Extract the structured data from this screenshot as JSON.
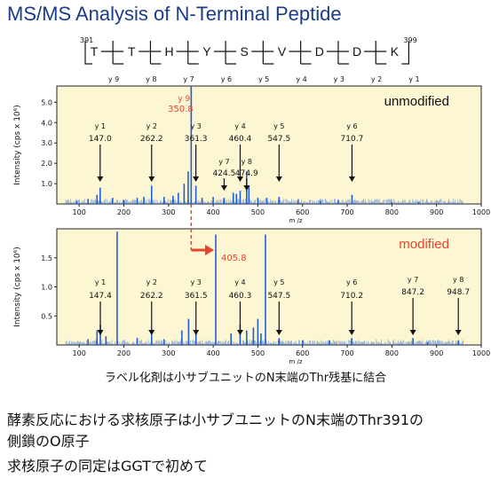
{
  "title": "MS/MS Analysis of N-Terminal Peptide",
  "peptide": {
    "residues": [
      "T",
      "T",
      "H",
      "Y",
      "S",
      "V",
      "D",
      "D",
      "K"
    ],
    "start_num": "391",
    "end_num": "399",
    "y_labels": [
      "y 9",
      "y 8",
      "y 7",
      "y 6",
      "y 5",
      "y 4",
      "y 3",
      "y 2",
      "y 1"
    ]
  },
  "caption": "ラベル化剤は小サブユニットのN末端のThr残基に結合",
  "notes": [
    "酵素反応における求核原子は小サブユニットのN末端のThr391の",
    "側鎖のO原子",
    "求核原子の同定はGGTで初めて"
  ],
  "chart_data": [
    {
      "type": "bar",
      "panel_label": "unmodified",
      "xlabel": "m /z",
      "ylabel": "Intensity (cps x 10⁶)",
      "xlim": [
        50,
        1000
      ],
      "ylim": [
        0,
        5.8
      ],
      "xticks": [
        100,
        200,
        300,
        400,
        500,
        600,
        700,
        800,
        900,
        1000
      ],
      "yticks": [
        1.0,
        2.0,
        3.0,
        4.0,
        5.0
      ],
      "peaks": [
        {
          "mz": 95,
          "i": 0.15
        },
        {
          "mz": 120,
          "i": 0.25
        },
        {
          "mz": 140,
          "i": 0.45
        },
        {
          "mz": 147.0,
          "i": 0.8
        },
        {
          "mz": 175,
          "i": 0.3
        },
        {
          "mz": 200,
          "i": 0.2
        },
        {
          "mz": 230,
          "i": 0.3
        },
        {
          "mz": 245,
          "i": 0.35
        },
        {
          "mz": 262.2,
          "i": 0.9
        },
        {
          "mz": 290,
          "i": 0.35
        },
        {
          "mz": 310,
          "i": 0.4
        },
        {
          "mz": 322,
          "i": 0.55
        },
        {
          "mz": 335,
          "i": 1.0
        },
        {
          "mz": 344,
          "i": 1.6
        },
        {
          "mz": 350.8,
          "i": 5.9
        },
        {
          "mz": 361.3,
          "i": 0.9
        },
        {
          "mz": 375,
          "i": 0.3
        },
        {
          "mz": 400,
          "i": 0.35
        },
        {
          "mz": 424.5,
          "i": 0.3
        },
        {
          "mz": 445,
          "i": 0.55
        },
        {
          "mz": 452,
          "i": 0.5
        },
        {
          "mz": 460.4,
          "i": 0.65
        },
        {
          "mz": 474.9,
          "i": 1.6
        },
        {
          "mz": 480,
          "i": 0.9
        },
        {
          "mz": 500,
          "i": 0.3
        },
        {
          "mz": 520,
          "i": 0.3
        },
        {
          "mz": 547.5,
          "i": 0.35
        },
        {
          "mz": 590,
          "i": 0.2
        },
        {
          "mz": 640,
          "i": 0.15
        },
        {
          "mz": 680,
          "i": 0.2
        },
        {
          "mz": 710.7,
          "i": 0.45
        },
        {
          "mz": 800,
          "i": 0.1
        },
        {
          "mz": 860,
          "i": 0.1
        }
      ],
      "annotations": [
        {
          "ion": "y 1",
          "mz": 147.0,
          "mz_label": "147.0",
          "arrow": true
        },
        {
          "ion": "y 2",
          "mz": 262.2,
          "mz_label": "262.2",
          "arrow": true
        },
        {
          "ion": "y 3",
          "mz": 361.3,
          "mz_label": "361.3",
          "arrow": true
        },
        {
          "ion": "y 7",
          "mz": 424.5,
          "mz_label": "424.5",
          "arrow": true
        },
        {
          "ion": "y 4",
          "mz": 460.4,
          "mz_label": "460.4",
          "arrow": true
        },
        {
          "ion": "y 8",
          "mz": 474.9,
          "mz_label": "474.9",
          "arrow": true
        },
        {
          "ion": "y 5",
          "mz": 547.5,
          "mz_label": "547.5",
          "arrow": true
        },
        {
          "ion": "y 6",
          "mz": 710.7,
          "mz_label": "710.7",
          "arrow": true
        },
        {
          "ion": "y 9",
          "mz": 350.8,
          "mz_label": "350.8",
          "arrow": false,
          "highlight": true
        }
      ]
    },
    {
      "type": "bar",
      "panel_label": "modified",
      "xlabel": "m /z",
      "ylabel": "Intensity (cps x 10⁶)",
      "xlim": [
        50,
        1000
      ],
      "ylim": [
        0,
        2.0
      ],
      "xticks": [
        100,
        200,
        300,
        400,
        500,
        600,
        700,
        800,
        900,
        1000
      ],
      "yticks": [
        0.5,
        1.0,
        1.5
      ],
      "peaks": [
        {
          "mz": 120,
          "i": 0.1
        },
        {
          "mz": 140,
          "i": 0.25
        },
        {
          "mz": 147.4,
          "i": 0.35
        },
        {
          "mz": 160,
          "i": 0.15
        },
        {
          "mz": 185,
          "i": 1.95
        },
        {
          "mz": 230,
          "i": 0.12
        },
        {
          "mz": 262.2,
          "i": 0.18
        },
        {
          "mz": 290,
          "i": 0.1
        },
        {
          "mz": 330,
          "i": 0.25
        },
        {
          "mz": 345,
          "i": 0.45
        },
        {
          "mz": 361.5,
          "i": 0.2
        },
        {
          "mz": 405.8,
          "i": 1.9
        },
        {
          "mz": 440,
          "i": 0.2
        },
        {
          "mz": 460.3,
          "i": 0.35
        },
        {
          "mz": 475,
          "i": 0.25
        },
        {
          "mz": 490,
          "i": 0.3
        },
        {
          "mz": 500,
          "i": 0.45
        },
        {
          "mz": 507,
          "i": 0.2
        },
        {
          "mz": 517,
          "i": 1.9
        },
        {
          "mz": 547.5,
          "i": 0.12
        },
        {
          "mz": 600,
          "i": 0.08
        },
        {
          "mz": 660,
          "i": 0.08
        },
        {
          "mz": 710.2,
          "i": 0.12
        },
        {
          "mz": 847.2,
          "i": 0.12
        },
        {
          "mz": 880,
          "i": 0.05
        },
        {
          "mz": 948.7,
          "i": 0.08
        }
      ],
      "annotations": [
        {
          "ion": "y 1",
          "mz": 147.4,
          "mz_label": "147.4",
          "arrow": true
        },
        {
          "ion": "y 2",
          "mz": 262.2,
          "mz_label": "262.2",
          "arrow": true
        },
        {
          "ion": "y 3",
          "mz": 361.5,
          "mz_label": "361.5",
          "arrow": true
        },
        {
          "ion": "y 4",
          "mz": 460.3,
          "mz_label": "460.3",
          "arrow": true
        },
        {
          "ion": "y 5",
          "mz": 547.5,
          "mz_label": "547.5",
          "arrow": true
        },
        {
          "ion": "y 6",
          "mz": 710.2,
          "mz_label": "710.2",
          "arrow": true
        },
        {
          "ion": "y 7",
          "mz": 847.2,
          "mz_label": "847.2",
          "arrow": true
        },
        {
          "ion": "y 8",
          "mz": 948.7,
          "mz_label": "948.7",
          "arrow": true
        }
      ],
      "highlight_peak": {
        "mz_label": "405.8",
        "from_mz": 350.8,
        "to_mz": 405.8
      }
    }
  ],
  "colors": {
    "title": "#1a3d8a",
    "panel_bg": "#fdf6d3",
    "peak": "#1f5fd6",
    "highlight": "#e8432c"
  }
}
